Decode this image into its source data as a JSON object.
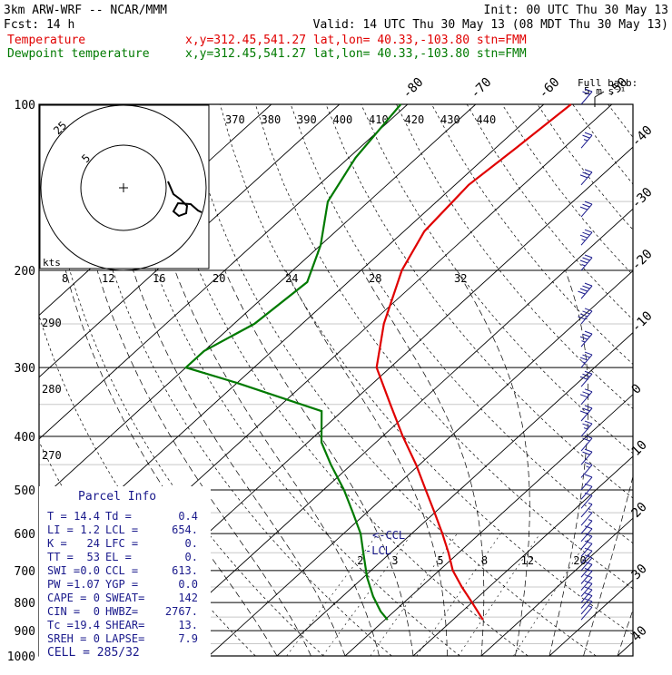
{
  "header": {
    "line1_left": "3km ARW-WRF -- NCAR/MMM",
    "line1_right": "Init: 00 UTC Thu 30 May 13",
    "line2_left": "Fcst:    14 h",
    "line2_right": "Valid: 14 UTC Thu 30 May 13 (08 MDT Thu 30 May 13)",
    "legend": [
      {
        "label": "Temperature",
        "info": "x,y=312.45,541.27    lat,lon= 40.33,-103.80  stn=FMM",
        "color": "#e00000"
      },
      {
        "label": "Dewpoint temperature",
        "info": "x,y=312.45,541.27    lat,lon= 40.33,-103.80  stn=FMM",
        "color": "#007a00"
      }
    ],
    "barb_title": "Full barb:",
    "barb_unit": "5 m s⁻¹"
  },
  "parcel": {
    "title": "Parcel Info",
    "rows": [
      [
        "T   =",
        "14.4",
        "Td  =",
        "0.4"
      ],
      [
        "LI  =",
        "1.2",
        "LCL =",
        "654."
      ],
      [
        "K   =",
        "24",
        "LFC =",
        "0."
      ],
      [
        "TT  =",
        "53",
        "EL  =",
        "0."
      ],
      [
        "SWI =",
        "0.0",
        "CCL =",
        "613."
      ],
      [
        "PW  =",
        "1.07",
        "YGP =",
        "0.0"
      ],
      [
        "CAPE =",
        "0",
        "SWEAT=",
        "142"
      ],
      [
        "CIN  =",
        "0",
        "HWBZ=",
        "2767."
      ],
      [
        "Tc   =",
        "19.4",
        "SHEAR=",
        "13."
      ],
      [
        "SREH =",
        "0",
        "LAPSE=",
        "7.9"
      ]
    ],
    "cell": "CELL = 285/32"
  },
  "labels": {
    "ccl": "<-CCL",
    "lcl": "-LCL",
    "wind_units": "kts",
    "mixing_ratio": [
      "2",
      "3",
      "5",
      "8",
      "12",
      "20"
    ],
    "hodo_speed_ticks": [
      "8",
      "12",
      "16",
      "20",
      "24",
      "28",
      "32"
    ],
    "hodo_rings": [
      "5",
      "25"
    ],
    "theta_top": [
      "370",
      "380",
      "390",
      "400",
      "410",
      "420",
      "430",
      "440"
    ],
    "theta_left": [
      "290",
      "280",
      "270"
    ]
  },
  "chart_data": {
    "type": "line",
    "title": "",
    "xlabel": "",
    "ylabel": "",
    "pressure_ticks": [
      100,
      200,
      300,
      400,
      500,
      600,
      700,
      800,
      900,
      1000
    ],
    "isotherm_labels": [
      -80,
      -70,
      -60,
      -50,
      -40,
      -30,
      -20,
      -10,
      0,
      10,
      20,
      30,
      40
    ],
    "series": [
      {
        "name": "Temperature",
        "color": "#e00000",
        "p": [
          860,
          800,
          750,
          700,
          650,
          600,
          550,
          500,
          450,
          400,
          350,
          300,
          250,
          200,
          170,
          140,
          120,
          100
        ],
        "t": [
          14.4,
          10.0,
          6.0,
          2.0,
          -1.5,
          -5.5,
          -10.0,
          -15.0,
          -20.5,
          -27.0,
          -34.0,
          -42.0,
          -48.0,
          -54.0,
          -57.0,
          -58.0,
          -57.0,
          -56.0
        ]
      },
      {
        "name": "Dewpoint temperature",
        "color": "#007a00",
        "p": [
          860,
          830,
          780,
          720,
          650,
          600,
          550,
          500,
          450,
          410,
          360,
          320,
          300,
          280,
          250,
          210,
          180,
          150,
          125,
          100
        ],
        "td": [
          0.4,
          -2.0,
          -5.5,
          -9.5,
          -14.0,
          -17.5,
          -22.0,
          -27.0,
          -33.0,
          -38.0,
          -43.0,
          -60.0,
          -70.0,
          -70.0,
          -67.0,
          -66.0,
          -70.0,
          -76.0,
          -79.0,
          -81.0
        ]
      }
    ],
    "wind": {
      "units_label": "Full barb: 5 m s-1",
      "p": [
        860,
        840,
        820,
        800,
        780,
        760,
        740,
        720,
        700,
        680,
        660,
        640,
        620,
        600,
        580,
        560,
        540,
        520,
        500,
        475,
        450,
        425,
        400,
        375,
        350,
        325,
        300,
        275,
        250,
        225,
        200,
        180,
        160,
        140,
        120,
        100
      ],
      "speed_ms": [
        4,
        5,
        5,
        5,
        5,
        6,
        6,
        6,
        6,
        5,
        5,
        5,
        5,
        4,
        4,
        4,
        5,
        6,
        7,
        9,
        10,
        12,
        14,
        15,
        16,
        17,
        18,
        19,
        20,
        20,
        19,
        18,
        17,
        15,
        14,
        12
      ]
    }
  }
}
